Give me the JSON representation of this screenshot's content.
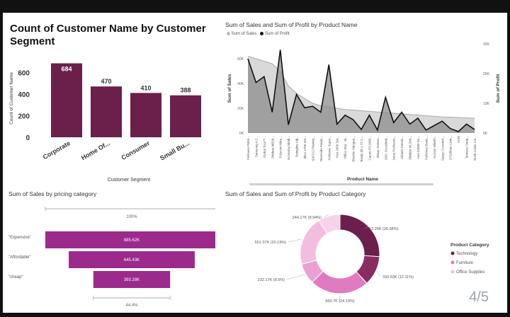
{
  "page": {
    "number": "4/5"
  },
  "customer_chart": {
    "title": "Count of Customer Name by Customer Segment",
    "ylabel": "Count of Customer Name",
    "xlabel": "Customer Segment",
    "yticks": [
      "0",
      "200",
      "400",
      "600"
    ],
    "color": "#6b1f4b",
    "chart_data": {
      "type": "bar",
      "categories": [
        "Corporate",
        "Home Of...",
        "Consumer",
        "Small Bu..."
      ],
      "values": [
        684,
        470,
        410,
        388
      ],
      "data_labels": [
        "684",
        "470",
        "410",
        "388"
      ],
      "ylim": [
        0,
        720
      ]
    }
  },
  "product_chart": {
    "title": "Sum of Sales and Sum of Profit by Product Name",
    "legend": [
      "Sum of Sales",
      "Sum of Profit"
    ],
    "ylabel_left": "Sum of Sales",
    "ylabel_right": "Sum of Profit",
    "xlabel": "Product Name",
    "left_ticks": [
      "0K",
      "20K",
      "40K",
      "60K"
    ],
    "right_ticks": [
      "0K",
      "10K",
      "20K",
      "30K"
    ],
    "chart_data": {
      "type": "area",
      "categories": [
        "Fellowes PB50...",
        "Samsung 4.2...",
        "Global Troy™...",
        "Okidata MB38...",
        "Polycom Wire...",
        "Economy Bindi...",
        "Swingline Adj...",
        "Ibico 4700 Ser...",
        "SAFCO PlanMa...",
        "Riverside Palais...",
        "Fellowes Super...",
        "Hon 2090 Ser...",
        "Office Star - M...",
        "Electrix Halogen...",
        "Brady 3E x 72 C...",
        "Canon PC1060...",
        "Sharp 1540cs...",
        "GBC DocuBind...",
        "Iceva Professio...",
        "Atlantic Metals...",
        "Okidata ML390...",
        "Hon 94000 Se...",
        "Fellowes Basic...",
        "Hoover WindT...",
        "Sanyo Countert...",
        "O'Sullivan Livin...",
        "2160",
        "Tennsco Snap...",
        "Bush Cubix Col..."
      ],
      "series": [
        {
          "name": "Sum of Sales",
          "values": [
            62000,
            60000,
            58000,
            56000,
            50000,
            38000,
            32000,
            28000,
            24000,
            22000,
            21000,
            20000,
            19000,
            18500,
            18000,
            17500,
            17000,
            16500,
            16000,
            15500,
            15000,
            14500,
            14000,
            13500,
            13000,
            12800,
            12500,
            12200,
            12000
          ]
        },
        {
          "name": "Sum of Profit",
          "values": [
            25000,
            17000,
            19000,
            7000,
            28000,
            2800,
            13000,
            8500,
            9000,
            7000,
            23000,
            3000,
            6000,
            4500,
            1200,
            6000,
            1000,
            12000,
            3500,
            7000,
            3000,
            5000,
            1000,
            2500,
            4000,
            1500,
            500,
            3000,
            1200
          ]
        }
      ],
      "ylim_left": [
        0,
        72000
      ],
      "ylim_right": [
        0,
        30000
      ]
    }
  },
  "pricing_chart": {
    "title": "Sum of Sales by pricing category",
    "top_pct": "100%",
    "bottom_pct": "44.4%",
    "color": "#9b2a8c",
    "chart_data": {
      "type": "bar",
      "categories": [
        "\"Expensive\"",
        "\"Affordable\"",
        "\"cheap\""
      ],
      "values": [
        885620,
        645430,
        393280
      ],
      "data_labels": [
        "885.62K",
        "645.43K",
        "393.28K"
      ]
    }
  },
  "category_chart": {
    "title": "Sum of Sales and Sum of Profit by Product Category",
    "legend_title": "Product Category",
    "legend": [
      {
        "label": "Technology",
        "color": "#6b1f4b"
      },
      {
        "label": "Furniture",
        "color": "#e07bc1"
      },
      {
        "label": "Office Supplies",
        "color": "#f3bde0"
      }
    ],
    "chart_data": {
      "type": "pie",
      "donut": true,
      "slices": [
        {
          "label": "712.26K (26.08%)",
          "value": 712260,
          "color": "#6b1f4b"
        },
        {
          "label": "330.63K (12.11%)",
          "value": 330630,
          "color": "#8a2c62"
        },
        {
          "label": "660.7K (24.19%)",
          "value": 660700,
          "color": "#e07bc1"
        },
        {
          "label": "232.17K (8.5%)",
          "value": 232170,
          "color": "#eaa0d3"
        },
        {
          "label": "551.37K (20.19%)",
          "value": 551370,
          "color": "#f3bde0"
        },
        {
          "label": "244.17K (8.94%)",
          "value": 244170,
          "color": "#f7d3ea"
        }
      ]
    }
  }
}
